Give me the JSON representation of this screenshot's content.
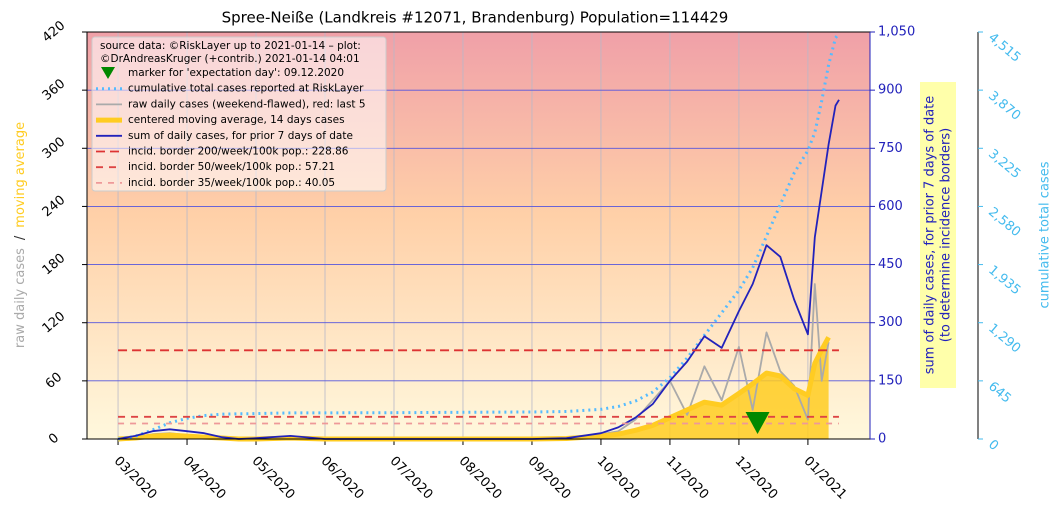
{
  "chart_data": {
    "type": "line",
    "title": "Spree-Neiße (Landkreis #12071, Brandenburg) Population=114429",
    "source_note": [
      "source data: ©RiskLayer up to 2021-01-14 – plot:",
      "©DrAndreasKruger (+contrib.) 2021-01-14 04:01"
    ],
    "y_label_parts": [
      "raw daily cases",
      "/",
      "moving average"
    ],
    "y2_label": [
      "sum of daily cases, for prior 7 days of date",
      "(to determine incidence borders)"
    ],
    "y3_label": "cumulative total cases",
    "grid": true,
    "x": [
      3.0,
      3.25,
      3.5,
      3.75,
      4.0,
      4.25,
      4.5,
      4.75,
      5.0,
      5.5,
      6,
      6.5,
      7,
      7.5,
      8,
      8.5,
      9,
      9.5,
      10,
      10.25,
      10.5,
      10.75,
      11,
      11.25,
      11.5,
      11.75,
      12,
      12.2,
      12.4,
      12.6,
      12.8,
      13.0,
      13.1,
      13.2,
      13.3,
      13.4,
      13.45
    ],
    "xlim": [
      2.55,
      13.9
    ],
    "xticks": [
      {
        "value": 3,
        "label": "03/2020"
      },
      {
        "value": 4,
        "label": "04/2020"
      },
      {
        "value": 5,
        "label": "05/2020"
      },
      {
        "value": 6,
        "label": "06/2020"
      },
      {
        "value": 7,
        "label": "07/2020"
      },
      {
        "value": 8,
        "label": "08/2020"
      },
      {
        "value": 9,
        "label": "09/2020"
      },
      {
        "value": 10,
        "label": "10/2020"
      },
      {
        "value": 11,
        "label": "11/2020"
      },
      {
        "value": 12,
        "label": "12/2020"
      },
      {
        "value": 13,
        "label": "01/2021"
      }
    ],
    "ylim": [
      0,
      420
    ],
    "yticks": [
      0,
      60,
      120,
      180,
      240,
      300,
      360,
      420
    ],
    "y2lim": [
      0,
      1050
    ],
    "y2ticks": [
      0,
      150,
      300,
      450,
      600,
      750,
      900,
      {
        "value": 1050,
        "label": "1,050"
      }
    ],
    "y3lim": [
      0,
      4515
    ],
    "y3ticks": [
      0,
      645,
      {
        "value": 1290,
        "label": "1,290"
      },
      {
        "value": 1935,
        "label": "1,935"
      },
      {
        "value": 2580,
        "label": "2,580"
      },
      {
        "value": 3225,
        "label": "3,225"
      },
      {
        "value": 3870,
        "label": "3,870"
      },
      {
        "value": 4515,
        "label": "4,515"
      }
    ],
    "marker": {
      "name": "marker for 'expectation day': 09.12.2020",
      "x": 12.27,
      "color": "#008800"
    },
    "series": [
      {
        "name": "cumulative total cases reported at RiskLayer",
        "color": "#55bbff",
        "axis": "y3",
        "style": "dotted",
        "values": [
          0,
          30,
          100,
          180,
          230,
          260,
          275,
          280,
          282,
          290,
          290,
          292,
          292,
          294,
          296,
          298,
          300,
          305,
          330,
          360,
          420,
          520,
          680,
          900,
          1150,
          1400,
          1650,
          1900,
          2250,
          2600,
          2950,
          3200,
          3400,
          3750,
          4150,
          4450,
          4500
        ]
      },
      {
        "name": "raw daily cases (weekend-flawed), red: last 5",
        "color": "#aaaaaa",
        "axis": "y",
        "style": "solid",
        "values": [
          0,
          2,
          5,
          6,
          4,
          3,
          1,
          0,
          0,
          2,
          0,
          0,
          0,
          0,
          0,
          0,
          0,
          1,
          5,
          8,
          20,
          40,
          60,
          25,
          75,
          40,
          95,
          30,
          110,
          70,
          55,
          20,
          160,
          60,
          100,
          null,
          null
        ]
      },
      {
        "name": "centered moving average, 14 days cases",
        "color": "#ffcc22",
        "axis": "y",
        "style": "thick",
        "values": [
          0,
          1,
          3,
          4,
          3,
          2,
          1,
          0,
          0,
          1,
          0,
          0,
          0,
          0,
          0,
          0,
          0,
          0.5,
          3,
          5,
          9,
          14,
          22,
          30,
          38,
          35,
          47,
          57,
          68,
          65,
          52,
          45,
          78,
          92,
          105,
          null,
          null
        ]
      },
      {
        "name": "sum of daily cases, for prior 7 days of date",
        "color": "#2222bb",
        "axis": "y2",
        "style": "solid",
        "values": [
          0,
          8,
          20,
          25,
          20,
          15,
          5,
          0,
          2,
          8,
          0,
          0,
          0,
          0,
          0,
          0,
          0,
          2,
          15,
          30,
          55,
          90,
          150,
          200,
          265,
          235,
          330,
          400,
          500,
          470,
          360,
          270,
          520,
          640,
          760,
          860,
          875
        ]
      }
    ],
    "borders": [
      {
        "name": "incid. border 200/week/100k pop.: 228.86",
        "value": 228.86,
        "color": "#dd3333"
      },
      {
        "name": "incid. border 50/week/100k pop.: 57.21",
        "value": 57.21,
        "color": "#dd4444"
      },
      {
        "name": "incid. border 35/week/100k pop.: 40.05",
        "value": 40.05,
        "color": "#ee9999"
      }
    ]
  }
}
